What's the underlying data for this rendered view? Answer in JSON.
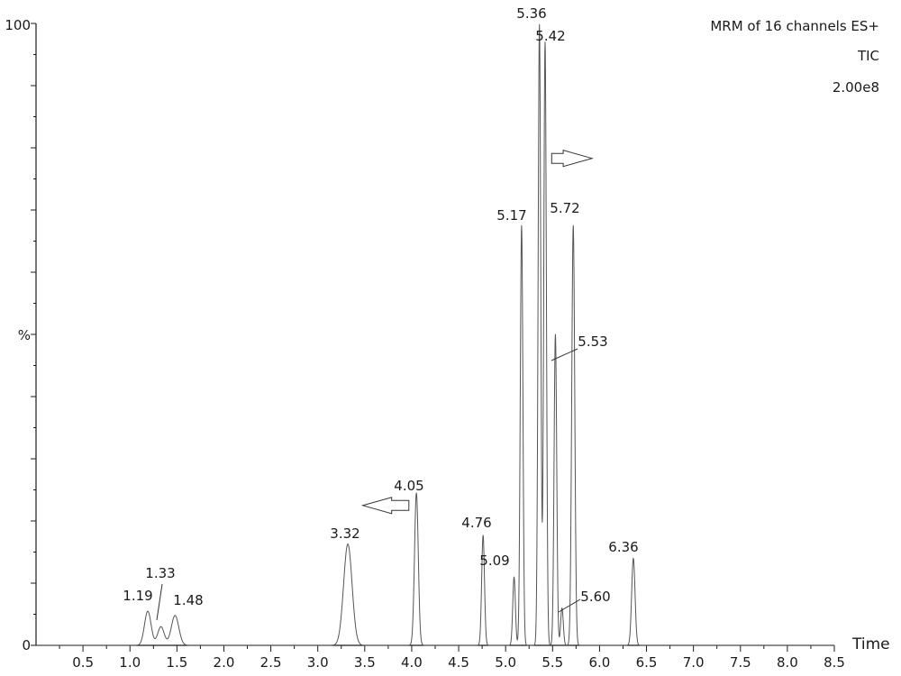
{
  "chart_data": {
    "type": "line",
    "title": "",
    "xlabel": "Time",
    "ylabel": "%",
    "xlim": [
      0,
      8.5
    ],
    "ylim": [
      0,
      100
    ],
    "x_ticks": [
      "0.5",
      "1.0",
      "1.5",
      "2.0",
      "2.5",
      "3.0",
      "3.5",
      "4.0",
      "4.5",
      "5.0",
      "5.5",
      "6.0",
      "6.5",
      "7.0",
      "7.5",
      "8.0",
      "8.5"
    ],
    "y_ticks": [
      "0",
      "100"
    ],
    "info": [
      "MRM of 16 channels ES+",
      "TIC",
      "2.00e8"
    ],
    "grid": false,
    "series": [
      {
        "color": "#555555",
        "peaks": [
          {
            "rt": 1.19,
            "height": 5.5,
            "width": 0.035,
            "label": "1.19"
          },
          {
            "rt": 1.33,
            "height": 3.0,
            "width": 0.035,
            "label": "1.33"
          },
          {
            "rt": 1.48,
            "height": 4.8,
            "width": 0.04,
            "label": "1.48"
          },
          {
            "rt": 3.32,
            "height": 16.3,
            "width": 0.045,
            "label": "3.32"
          },
          {
            "rt": 4.05,
            "height": 24.5,
            "width": 0.02,
            "label": "4.05"
          },
          {
            "rt": 4.76,
            "height": 17.7,
            "width": 0.015,
            "label": "4.76"
          },
          {
            "rt": 5.09,
            "height": 11.0,
            "width": 0.014,
            "label": "5.09"
          },
          {
            "rt": 5.17,
            "height": 67.5,
            "width": 0.014,
            "label": "5.17"
          },
          {
            "rt": 5.36,
            "height": 99.8,
            "width": 0.014,
            "label": "5.36"
          },
          {
            "rt": 5.42,
            "height": 97.0,
            "width": 0.014,
            "label": "5.42"
          },
          {
            "rt": 5.53,
            "height": 50.0,
            "width": 0.014,
            "label": "5.53"
          },
          {
            "rt": 5.6,
            "height": 6.0,
            "width": 0.014,
            "label": "5.60"
          },
          {
            "rt": 5.72,
            "height": 67.5,
            "width": 0.016,
            "label": "5.72"
          },
          {
            "rt": 6.36,
            "height": 14.0,
            "width": 0.018,
            "label": "6.36"
          }
        ]
      }
    ],
    "annotations": [
      {
        "type": "arrow",
        "direction": "right",
        "x_start": 5.49,
        "x_end": 5.92,
        "y": 78.3
      },
      {
        "type": "arrow",
        "direction": "left",
        "x_start": 3.48,
        "x_end": 3.97,
        "y": 22.5
      }
    ]
  }
}
